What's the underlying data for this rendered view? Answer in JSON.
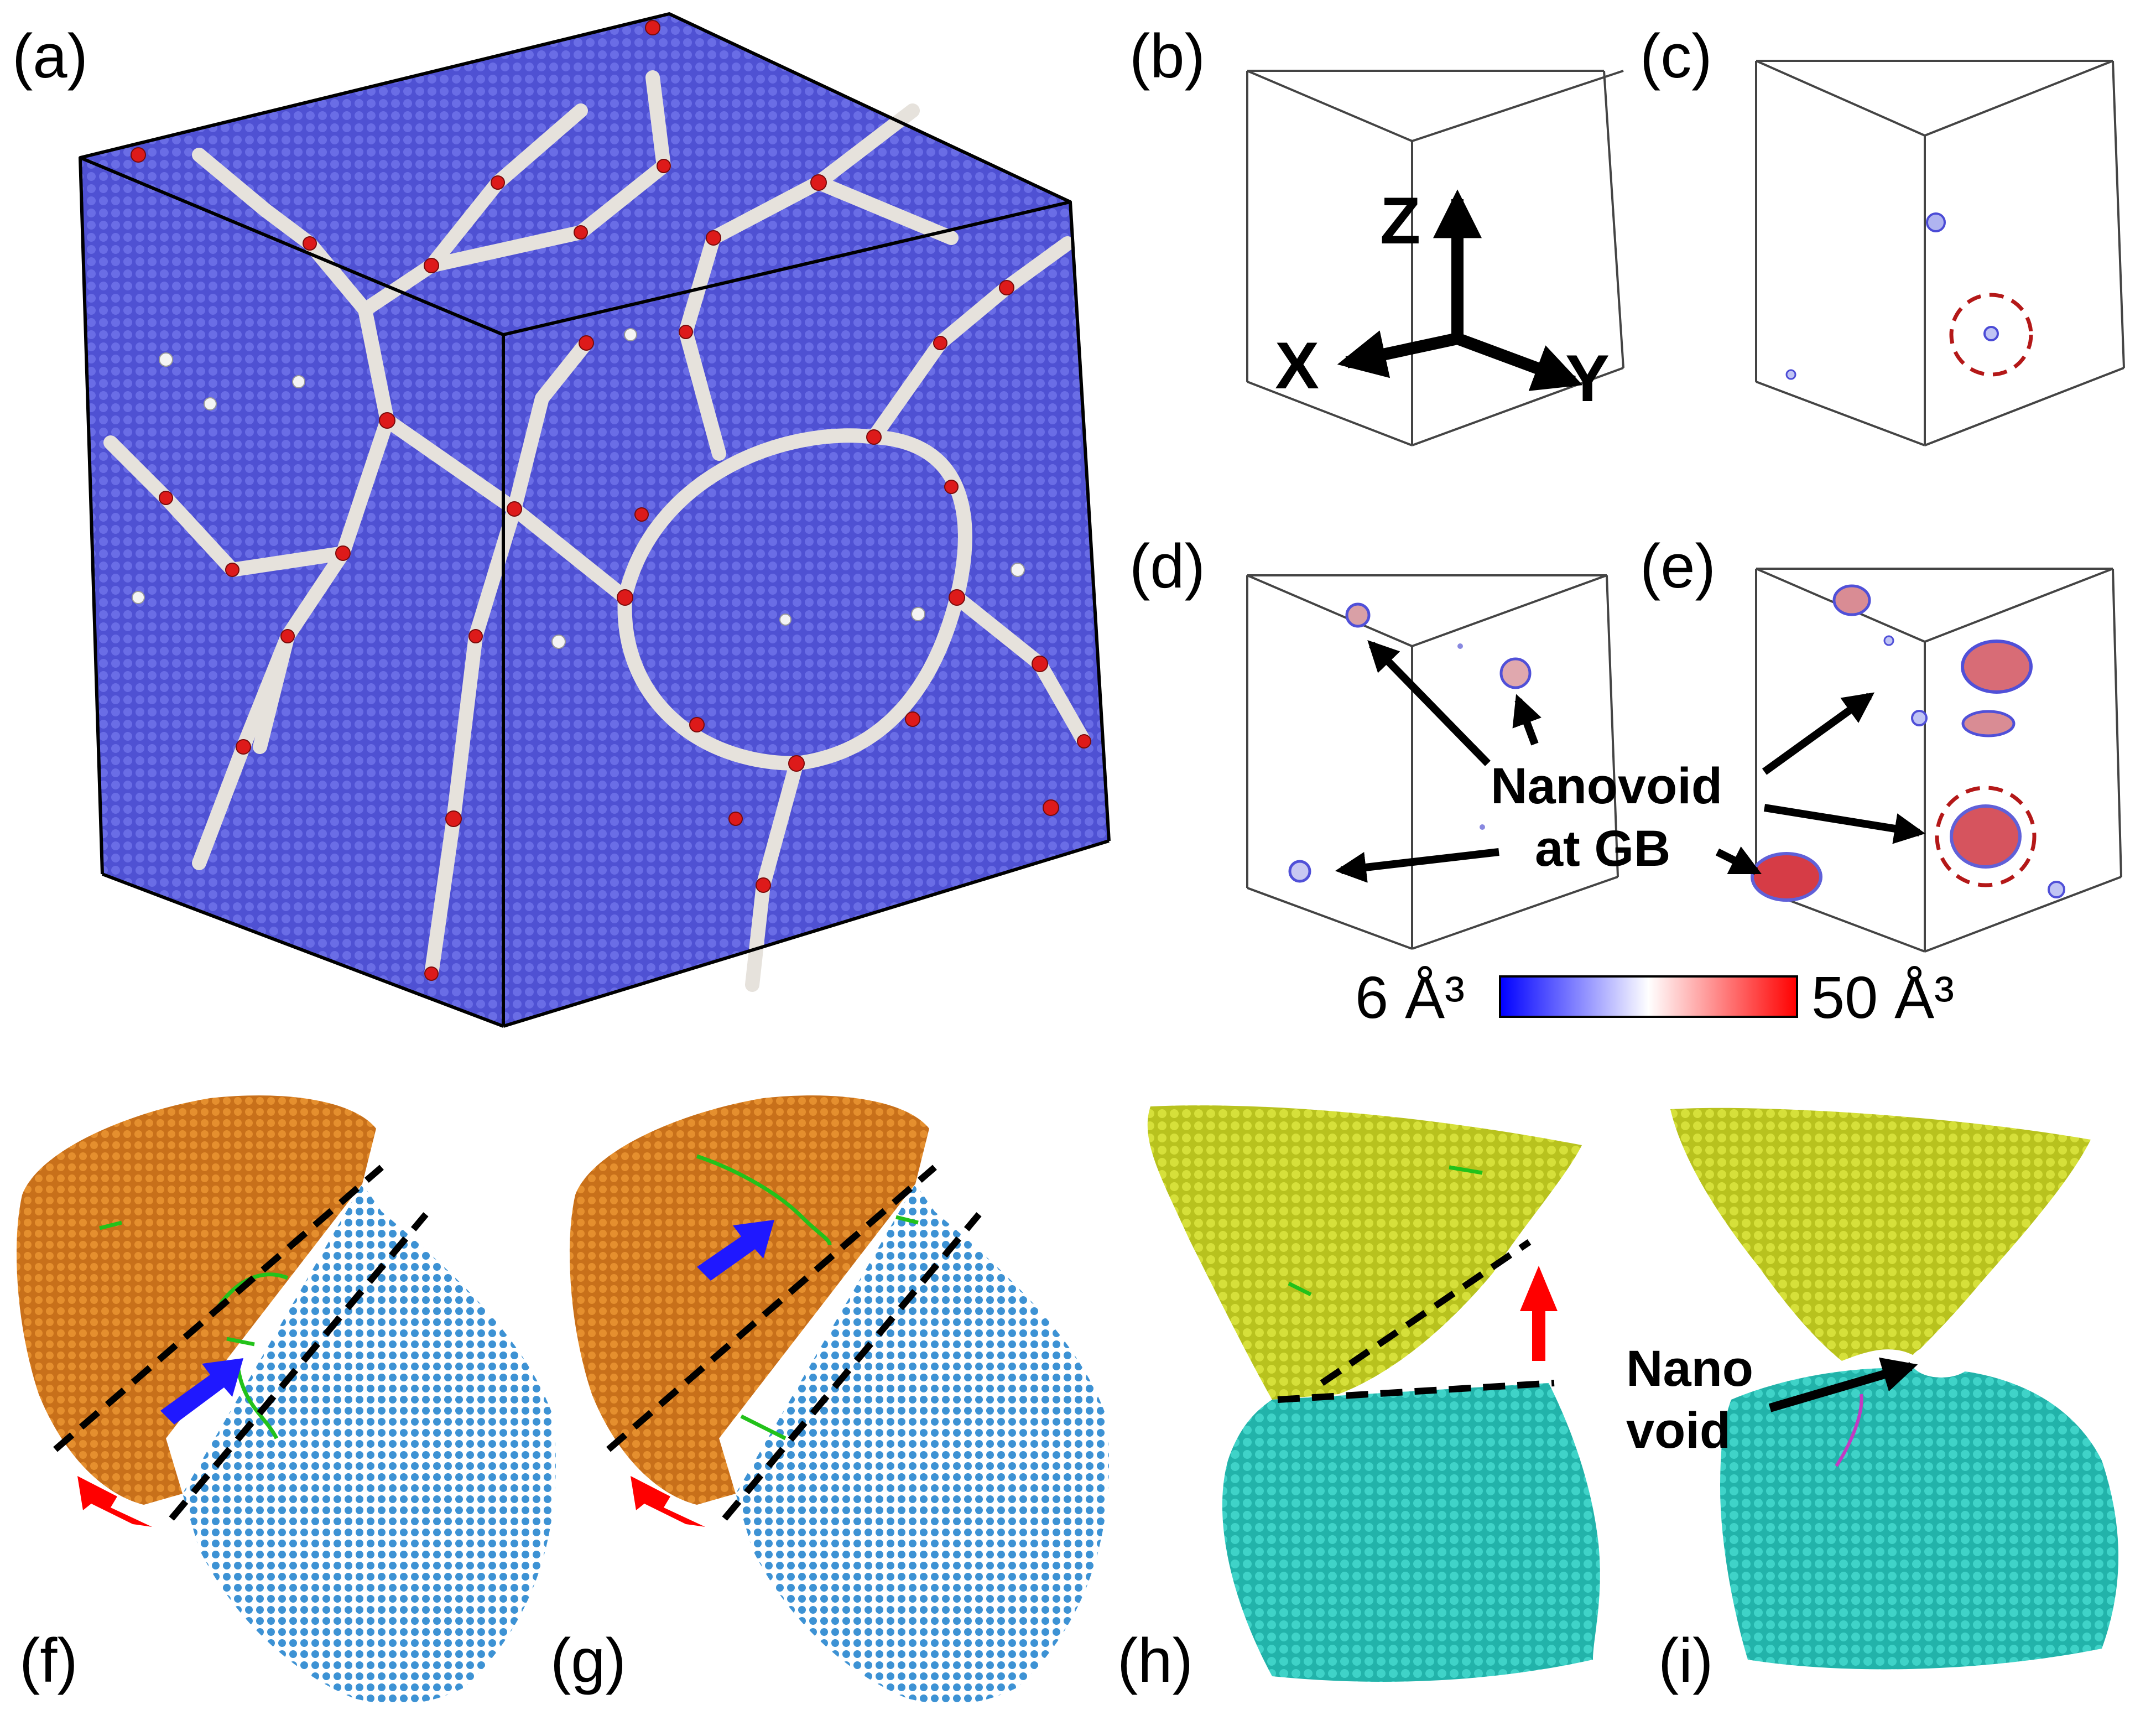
{
  "panels": {
    "a": "(a)",
    "b": "(b)",
    "c": "(c)",
    "d": "(d)",
    "e": "(e)",
    "f": "(f)",
    "g": "(g)",
    "h": "(h)",
    "i": "(i)"
  },
  "axes": {
    "z": "Z",
    "x": "X",
    "y": "Y"
  },
  "annotations": {
    "nanovoid_line1": "Nanovoid",
    "nanovoid_line2": "at GB",
    "nano_line1": "Nano",
    "nano_line2": "void"
  },
  "colorbar": {
    "min_label": "6 Å³",
    "max_label": "50 Å³",
    "colors": [
      "#0000ff",
      "#ffffff",
      "#ff0000"
    ]
  },
  "colors": {
    "grain_blue": "#5457d6",
    "grain_boundary": "#e6e2dc",
    "defect_red": "#dd1a1a",
    "grain_orange": "#d9801c",
    "grain_lightblue": "#3f94d6",
    "grain_yellow": "#ccd62a",
    "grain_cyan": "#34c9bf",
    "arrow_blue": "#1f18ff",
    "arrow_red": "#ff0000",
    "dislocation_green": "#22c21a",
    "circle_darkred": "#b41818"
  }
}
